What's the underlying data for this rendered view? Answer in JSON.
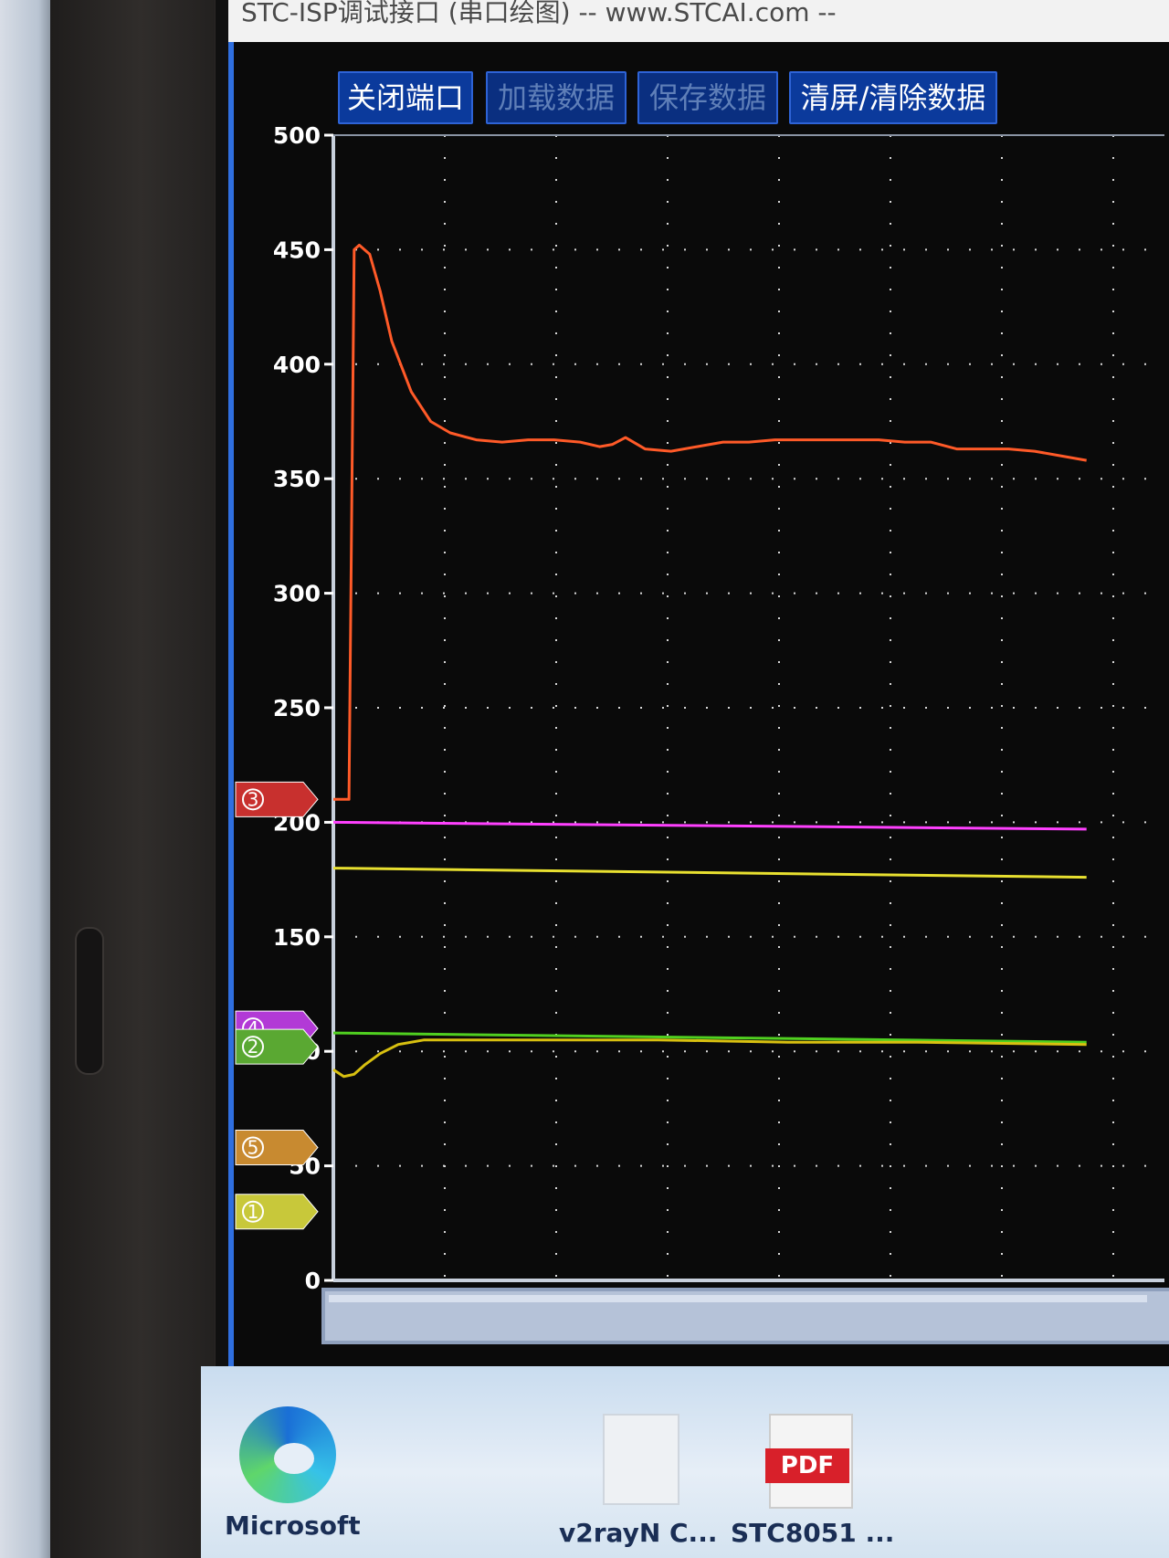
{
  "window": {
    "title": "STC-ISP调试接口 (串口绘图) -- www.STCAI.com --"
  },
  "toolbar": {
    "close_port": "关闭端口",
    "load_data": "加载数据",
    "save_data": "保存数据",
    "clear": "清屏/清除数据"
  },
  "desktop": {
    "icons": [
      {
        "label": "Microsoft",
        "icon": "edge-icon"
      },
      {
        "label": "v2rayN C...",
        "icon": "folder-icon"
      },
      {
        "label": "STC8051 ...",
        "icon": "pdf-icon",
        "badge": "PDF"
      }
    ]
  },
  "chart_data": {
    "type": "line",
    "ylim": [
      0,
      500
    ],
    "yticks": [
      0,
      50,
      100,
      150,
      200,
      250,
      300,
      350,
      400,
      450,
      500
    ],
    "grid": true,
    "markers": [
      {
        "num": "3",
        "value": 210,
        "color": "#c8302e"
      },
      {
        "num": "4",
        "value": 110,
        "color": "#b23ad6"
      },
      {
        "num": "2",
        "value": 102,
        "color": "#5aa832"
      },
      {
        "num": "5",
        "value": 58,
        "color": "#c88a30"
      },
      {
        "num": "1",
        "value": 30,
        "color": "#c8c83a"
      }
    ],
    "series": [
      {
        "color": "#ff5a28",
        "x": [
          0,
          4,
          8,
          12,
          16,
          20,
          28,
          36,
          45,
          60,
          75,
          90,
          110,
          130,
          150,
          170,
          190,
          205,
          215,
          225,
          240,
          260,
          280,
          300,
          320,
          340,
          360,
          380,
          400,
          420,
          440,
          460,
          480,
          500,
          520,
          540,
          560,
          580
        ],
        "values": [
          210,
          210,
          210,
          210,
          450,
          452,
          448,
          432,
          410,
          388,
          375,
          370,
          367,
          366,
          367,
          367,
          366,
          364,
          365,
          368,
          363,
          362,
          364,
          366,
          366,
          367,
          367,
          367,
          367,
          367,
          366,
          366,
          363,
          363,
          363,
          362,
          360,
          358
        ]
      },
      {
        "color": "#ff40ff",
        "x": [
          0,
          580
        ],
        "values": [
          200,
          197
        ]
      },
      {
        "color": "#e8e030",
        "x": [
          0,
          580
        ],
        "values": [
          180,
          176
        ]
      },
      {
        "color": "#50d020",
        "x": [
          0,
          580
        ],
        "values": [
          108,
          104
        ]
      },
      {
        "color": "#d8c010",
        "x": [
          0,
          8,
          16,
          24,
          36,
          50,
          70,
          100,
          150,
          250,
          350,
          450,
          580
        ],
        "values": [
          92,
          89,
          90,
          94,
          99,
          103,
          105,
          105,
          105,
          105,
          104,
          104,
          103
        ]
      }
    ]
  }
}
